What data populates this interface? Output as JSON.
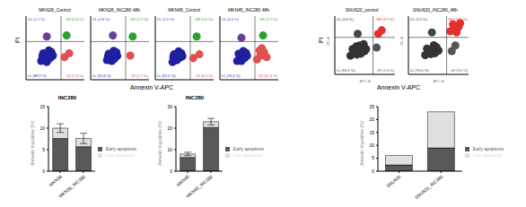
{
  "chart_data": [
    {
      "type": "scatter",
      "x_label": "Annexin V-APC",
      "y_label": "PI",
      "log": true,
      "xlim": [
        1,
        100000
      ],
      "ylim": [
        1,
        100000
      ],
      "xticks": [
        1,
        10,
        100,
        1000,
        10000,
        100000
      ],
      "yticks": [
        1,
        10,
        100,
        1000,
        10000,
        100000
      ],
      "tick_labels": false,
      "colors": [
        "#6a3d9a",
        "#2ca02c",
        "#1f1fa0",
        "#e05050"
      ],
      "panels": [
        {
          "title": "MKN28_Control",
          "gates": [
            1000,
            1000
          ],
          "quadrant_labels": [
            "UL (1.1 %)",
            "UR (2.4 %)",
            "LL (88.9 %)",
            "LR (7.6 %)"
          ],
          "points": [
            [
              20,
              30
            ],
            [
              40,
              60
            ],
            [
              60,
              25
            ],
            [
              80,
              90
            ],
            [
              30,
              120
            ],
            [
              120,
              50
            ],
            [
              150,
              150
            ],
            [
              50,
              40
            ],
            [
              90,
              200
            ],
            [
              200,
              80
            ],
            [
              25,
              70
            ],
            [
              70,
              130
            ],
            [
              2000,
              60
            ],
            [
              5000,
              120
            ],
            [
              3000,
              3000
            ],
            [
              60,
              2500
            ]
          ]
        },
        {
          "title": "MKN28_INC280 48h",
          "gates": [
            1000,
            1000
          ],
          "quadrant_labels": [
            "UL (0.8 %)",
            "UR (1.9 %)",
            "LL (91.6 %)",
            "LR (5.7 %)"
          ],
          "points": [
            [
              25,
              35
            ],
            [
              45,
              55
            ],
            [
              65,
              30
            ],
            [
              85,
              95
            ],
            [
              35,
              110
            ],
            [
              110,
              45
            ],
            [
              160,
              140
            ],
            [
              55,
              45
            ],
            [
              95,
              190
            ],
            [
              190,
              75
            ],
            [
              30,
              65
            ],
            [
              75,
              125
            ],
            [
              2500,
              80
            ],
            [
              4000,
              2500
            ],
            [
              80,
              3000
            ]
          ]
        },
        {
          "title": "MKN45_Control",
          "gates": [
            1000,
            1000
          ],
          "quadrant_labels": [
            "UL (0.5 %)",
            "UR (1.6 %)",
            "LL (91.5 %)",
            "LR (6.4 %)"
          ],
          "points": [
            [
              30,
              25
            ],
            [
              50,
              50
            ],
            [
              70,
              35
            ],
            [
              90,
              80
            ],
            [
              40,
              100
            ],
            [
              130,
              55
            ],
            [
              170,
              120
            ],
            [
              60,
              35
            ],
            [
              100,
              170
            ],
            [
              210,
              70
            ],
            [
              35,
              60
            ],
            [
              80,
              110
            ],
            [
              1800,
              50
            ],
            [
              6000,
              100
            ],
            [
              3500,
              2500
            ]
          ]
        },
        {
          "title": "MKN45_INC280 48h",
          "gates": [
            1000,
            1000
          ],
          "quadrant_labels": [
            "UL (0.6 %)",
            "UR (2.7 %)",
            "LL (76.4 %)",
            "LR (20.3 %)"
          ],
          "points": [
            [
              30,
              30
            ],
            [
              50,
              55
            ],
            [
              70,
              30
            ],
            [
              90,
              85
            ],
            [
              40,
              110
            ],
            [
              130,
              50
            ],
            [
              170,
              130
            ],
            [
              100,
              180
            ],
            [
              210,
              75
            ],
            [
              1500,
              40
            ],
            [
              3000,
              80
            ],
            [
              6000,
              150
            ],
            [
              10000,
              60
            ],
            [
              4000,
              300
            ],
            [
              2500,
              200
            ],
            [
              5000,
              3000
            ],
            [
              70,
              2000
            ]
          ]
        }
      ]
    },
    {
      "type": "scatter",
      "x_label": "Annexin V-APC",
      "y_label": "PI",
      "axis_titles": {
        "x": "APC-A",
        "y": "PE-A"
      },
      "log": true,
      "xlim": [
        1,
        100000
      ],
      "ylim": [
        1,
        100000
      ],
      "xticks": [
        1,
        10,
        100,
        1000,
        10000,
        100000
      ],
      "yticks": [
        1,
        10,
        100,
        1000,
        10000,
        100000
      ],
      "tick_labels": false,
      "colors": [
        "#444444",
        "#e03030",
        "#333333",
        "#555555"
      ],
      "panels": [
        {
          "title": "SNU620_control",
          "gates": [
            1500,
            1500
          ],
          "quadrant_labels": [
            "UL (0.8 %)",
            "UR (3.7 %)",
            "LL (93.1 %)",
            "LR (2.4 %)"
          ],
          "points": [
            [
              20,
              40
            ],
            [
              40,
              80
            ],
            [
              70,
              50
            ],
            [
              100,
              120
            ],
            [
              150,
              60
            ],
            [
              200,
              200
            ],
            [
              300,
              100
            ],
            [
              60,
              250
            ],
            [
              120,
              300
            ],
            [
              400,
              150
            ],
            [
              30,
              150
            ],
            [
              250,
              400
            ],
            [
              3000,
              200
            ],
            [
              4000,
              3000
            ],
            [
              8000,
              6000
            ],
            [
              80,
              3000
            ]
          ]
        },
        {
          "title": "SNU620_INC280_48h",
          "gates": [
            1500,
            1500
          ],
          "quadrant_labels": [
            "UL (2.0 %)",
            "UR (14.0 %)",
            "LL (75.0 %)",
            "LR (9.0 %)"
          ],
          "points": [
            [
              25,
              45
            ],
            [
              45,
              85
            ],
            [
              75,
              55
            ],
            [
              110,
              130
            ],
            [
              160,
              65
            ],
            [
              220,
              210
            ],
            [
              320,
              110
            ],
            [
              130,
              320
            ],
            [
              35,
              160
            ],
            [
              4000,
              100
            ],
            [
              8000,
              300
            ],
            [
              3000,
              5000
            ],
            [
              8000,
              9000
            ],
            [
              15000,
              12000
            ],
            [
              5000,
              20000
            ],
            [
              10000,
              4000
            ],
            [
              20000,
              25000
            ],
            [
              90,
              4000
            ]
          ]
        }
      ]
    },
    {
      "type": "bar",
      "title": "INC280",
      "y_label": "Annexin V-positive (%)",
      "categories": [
        "MKN28",
        "MKN28_INC280"
      ],
      "ylim": [
        0,
        15
      ],
      "yticks": [
        0,
        5,
        10,
        15
      ],
      "stacked": true,
      "legend": "right",
      "series": [
        {
          "name": "Early apoptosis",
          "color": "#595959",
          "values": [
            7.6,
            5.7
          ]
        },
        {
          "name": "Late apoptosis",
          "color": "#e0e0e0",
          "values": [
            2.4,
            1.9
          ],
          "errors": [
            1.0,
            1.2
          ]
        }
      ]
    },
    {
      "type": "bar",
      "title": "INC280",
      "y_label": "Annexin V-positive (%)",
      "categories": [
        "MKN45",
        "MKN45_INC280"
      ],
      "ylim": [
        0,
        30
      ],
      "yticks": [
        0,
        10,
        20,
        30
      ],
      "stacked": true,
      "legend": "right",
      "series": [
        {
          "name": "Early apoptosis",
          "color": "#595959",
          "values": [
            6.4,
            20.3
          ]
        },
        {
          "name": "Late apoptosis",
          "color": "#e0e0e0",
          "values": [
            1.6,
            2.7
          ],
          "errors": [
            0.8,
            1.5
          ]
        }
      ]
    },
    {
      "type": "bar",
      "y_label": "Annexin V-positive (%)",
      "categories": [
        "SNU620",
        "SNU620_INC280"
      ],
      "ylim": [
        0,
        25
      ],
      "yticks": [
        0,
        5,
        10,
        15,
        20,
        25
      ],
      "stacked": true,
      "legend": "right",
      "series": [
        {
          "name": "Early apoptosis",
          "color": "#595959",
          "values": [
            2.4,
            9.0
          ]
        },
        {
          "name": "Late apoptosis",
          "color": "#e0e0e0",
          "values": [
            3.7,
            14.0
          ]
        }
      ]
    }
  ]
}
